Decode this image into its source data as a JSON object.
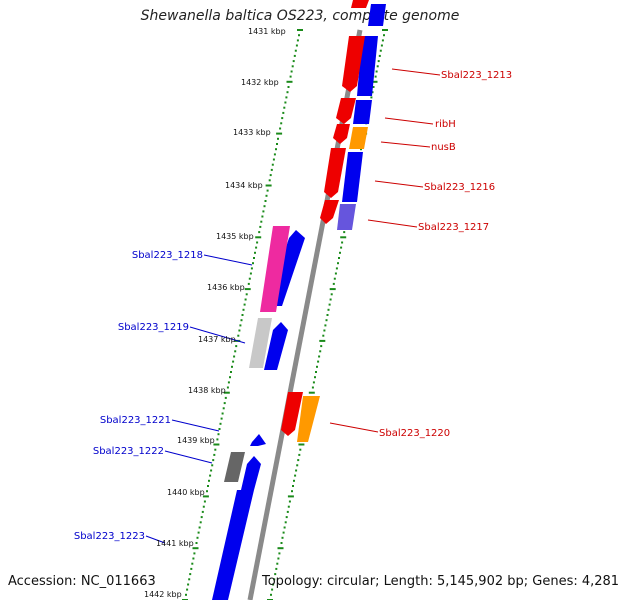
{
  "title": "Shewanella baltica OS223, complete genome",
  "accession_label": "Accession: NC_011663",
  "topology_label": "Topology: circular; Length: 5,145,902 bp; Genes: 4,281",
  "colors": {
    "backbone": "#8a8a8a",
    "tick_dots": "#1a8a1a",
    "forward_gene": "#0000ee",
    "reverse_gene": "#ee0000",
    "label_left": "#0000cc",
    "label_right": "#cc0000",
    "orange": "#ff9900",
    "pink": "#ee2aa0",
    "light_gray": "#c8c8c8",
    "dark_gray": "#666666",
    "violet": "#6655dd"
  },
  "kbp_ticks": [
    "1431 kbp",
    "1432 kbp",
    "1433 kbp",
    "1434 kbp",
    "1435 kbp",
    "1436 kbp",
    "1437 kbp",
    "1438 kbp",
    "1439 kbp",
    "1440 kbp",
    "1441 kbp",
    "1442 kbp"
  ],
  "labels": {
    "right": [
      "Sbal223_1213",
      "ribH",
      "nusB",
      "Sbal223_1216",
      "Sbal223_1217",
      "Sbal223_1220"
    ],
    "left": [
      "Sbal223_1218",
      "Sbal223_1219",
      "Sbal223_1221",
      "Sbal223_1222",
      "Sbal223_1223"
    ]
  }
}
